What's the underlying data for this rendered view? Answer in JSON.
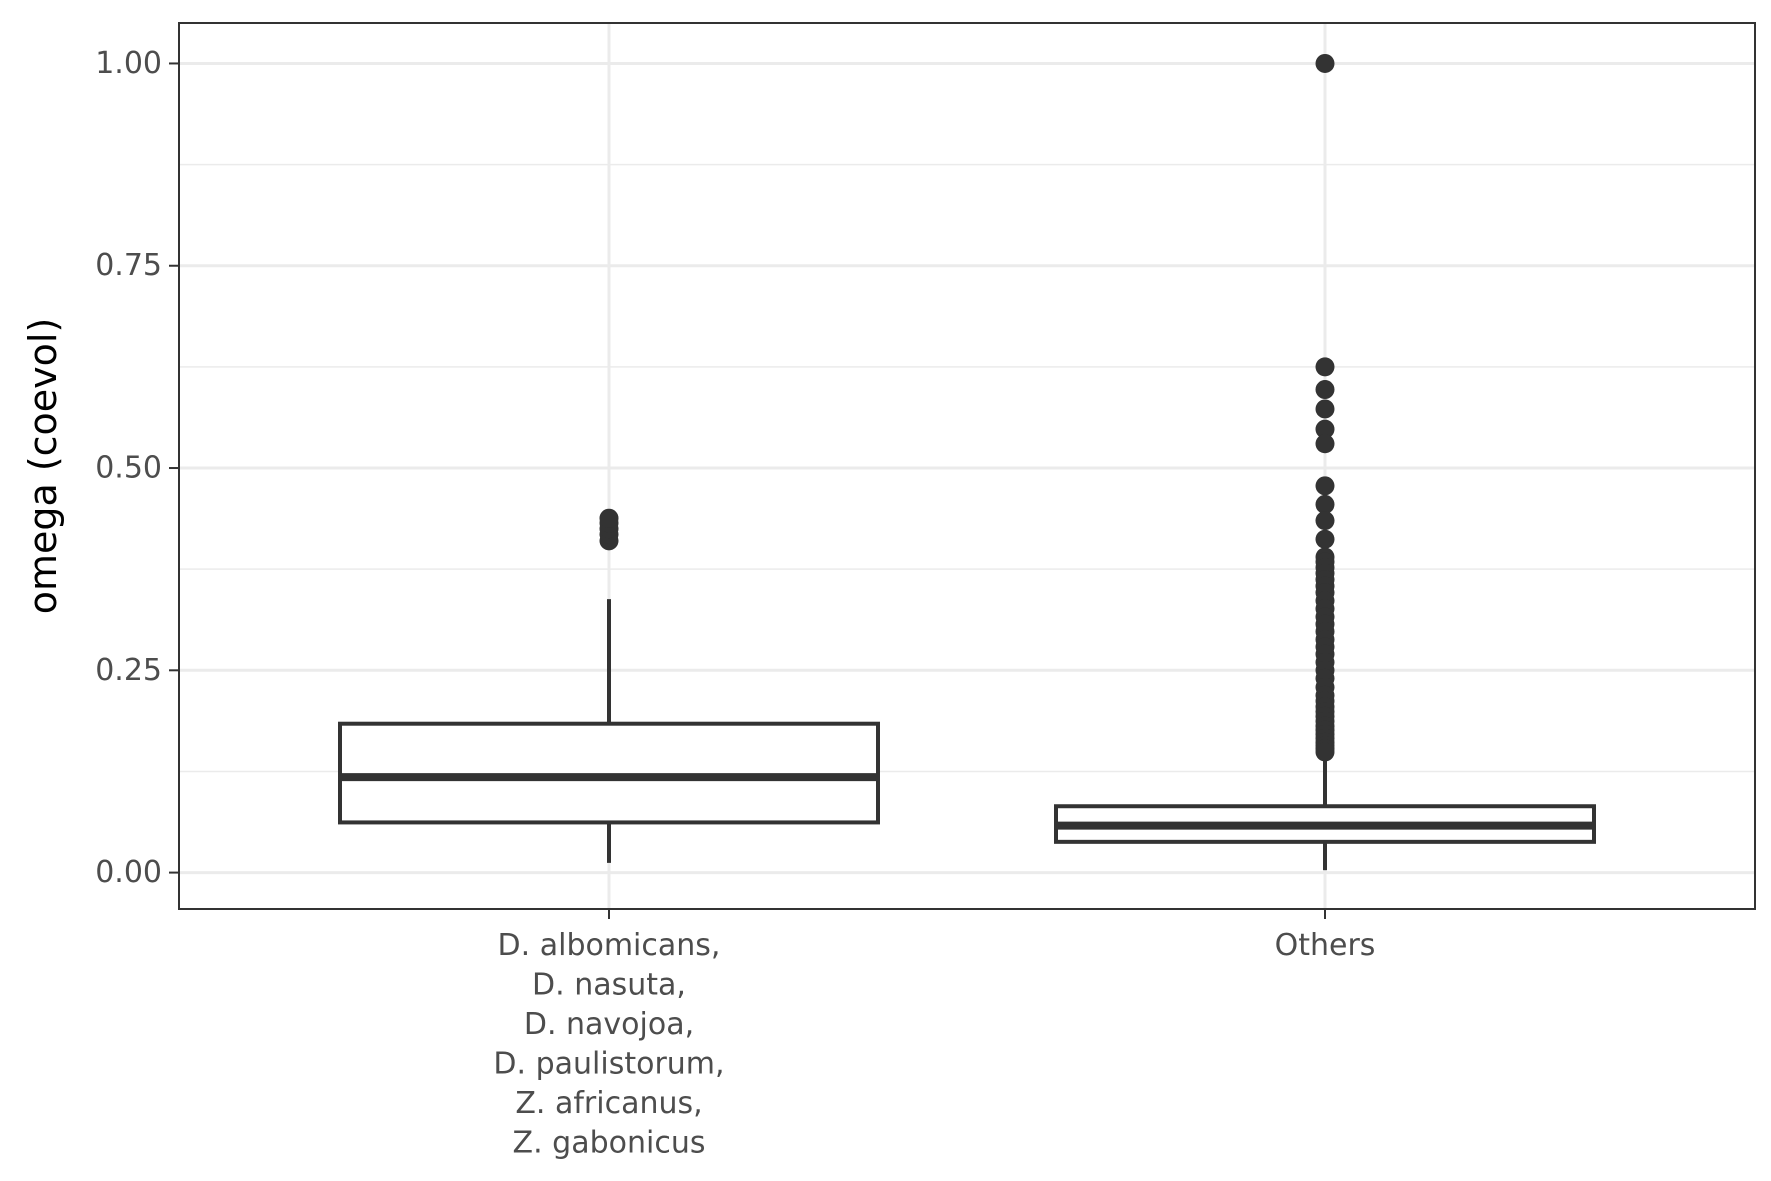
{
  "chart_data": {
    "type": "box",
    "ylabel": "omega (coevol)",
    "xlabel": "",
    "ylim": [
      -0.045,
      1.05
    ],
    "yticks": [
      {
        "value": 0.0,
        "label": "0.00"
      },
      {
        "value": 0.25,
        "label": "0.25"
      },
      {
        "value": 0.5,
        "label": "0.50"
      },
      {
        "value": 0.75,
        "label": "0.75"
      },
      {
        "value": 1.0,
        "label": "1.00"
      }
    ],
    "y_minor_grid": [
      0.125,
      0.375,
      0.625,
      0.875
    ],
    "grid": true,
    "categories": [
      {
        "label_lines": [
          "D. albomicans,",
          "D. nasuta,",
          "D. navojoa,",
          "D. paulistorum,",
          "Z. africanus,",
          "Z. gabonicus"
        ],
        "whisker_low": 0.012,
        "q1": 0.062,
        "median": 0.118,
        "q3": 0.184,
        "whisker_high": 0.338,
        "outliers": [
          0.41,
          0.418,
          0.425,
          0.432,
          0.438
        ]
      },
      {
        "label_lines": [
          "Others"
        ],
        "whisker_low": 0.003,
        "q1": 0.038,
        "median": 0.058,
        "q3": 0.082,
        "whisker_high": 0.142,
        "outliers": [
          1.0,
          0.625,
          0.597,
          0.573,
          0.548,
          0.53,
          0.478,
          0.455,
          0.435,
          0.412,
          0.39,
          0.384,
          0.377,
          0.37,
          0.362,
          0.354,
          0.346,
          0.336,
          0.326,
          0.316,
          0.307,
          0.298,
          0.288,
          0.279,
          0.27,
          0.26,
          0.25,
          0.24,
          0.229,
          0.219,
          0.212,
          0.205,
          0.199,
          0.193,
          0.187,
          0.181,
          0.176,
          0.171,
          0.166,
          0.161,
          0.157,
          0.153,
          0.149
        ]
      }
    ],
    "colors": {
      "box_stroke": "#333333",
      "box_fill": "#ffffff",
      "outlier": "#333333",
      "grid": "#ebebeb",
      "panel_border": "#333333",
      "tick_label": "#4d4d4d",
      "axis_title": "#000000"
    }
  }
}
